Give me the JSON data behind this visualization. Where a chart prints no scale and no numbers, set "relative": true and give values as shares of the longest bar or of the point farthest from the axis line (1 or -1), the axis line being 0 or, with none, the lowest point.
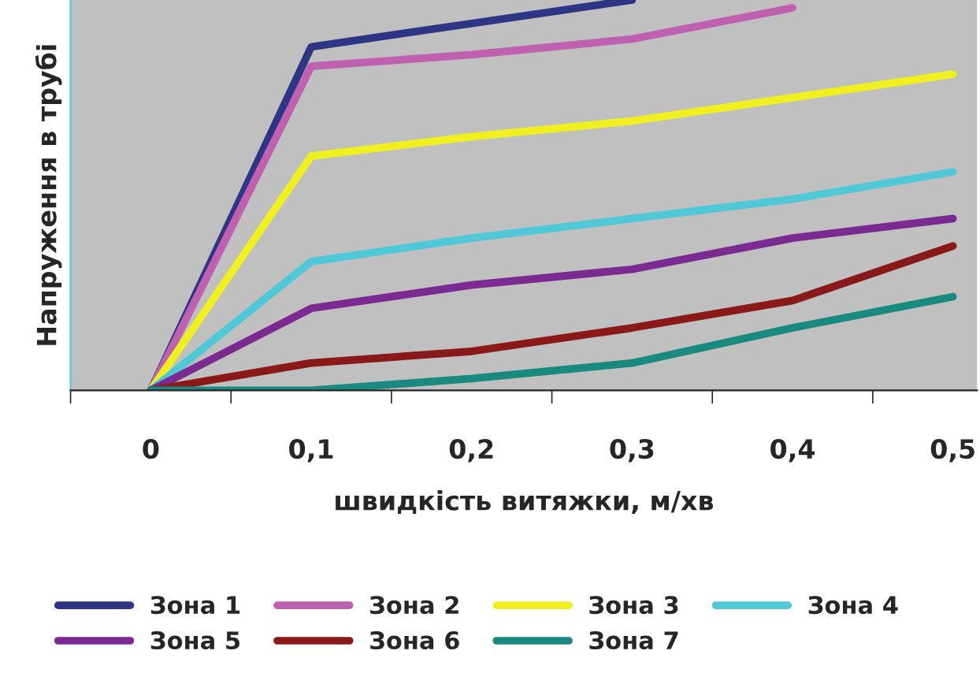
{
  "chart_data": {
    "type": "line",
    "relative": true,
    "xlabel": "швидкість витяжки, м/хв",
    "ylabel": "Напруження в трубі",
    "categories": [
      "0",
      "0,1",
      "0,2",
      "0,3",
      "0,4",
      "0,5"
    ],
    "series": [
      {
        "name": "Зона 1",
        "color": "#2e3585",
        "values": [
          0,
          0.88,
          0.94,
          1,
          null,
          null
        ]
      },
      {
        "name": "Зона 2",
        "color": "#c060b0",
        "values": [
          0,
          0.83,
          0.86,
          0.9,
          0.98,
          null
        ]
      },
      {
        "name": "Зона 3",
        "color": "#f0f020",
        "values": [
          0,
          0.6,
          0.65,
          0.69,
          0.75,
          0.81
        ]
      },
      {
        "name": "Зона 4",
        "color": "#50c8d8",
        "values": [
          0,
          0.33,
          0.39,
          0.44,
          0.49,
          0.56
        ]
      },
      {
        "name": "Зона 5",
        "color": "#7a2a90",
        "values": [
          0,
          0.21,
          0.27,
          0.31,
          0.39,
          0.44
        ]
      },
      {
        "name": "Зона 6",
        "color": "#8a1a1a",
        "values": [
          0,
          0.07,
          0.1,
          0.16,
          0.23,
          0.37
        ]
      },
      {
        "name": "Зона 7",
        "color": "#1a8a80",
        "values": [
          0,
          0,
          0.03,
          0.07,
          0.16,
          0.24
        ]
      }
    ],
    "legend": "bottom",
    "grid": false,
    "marker": "none",
    "line_style": "solid"
  }
}
